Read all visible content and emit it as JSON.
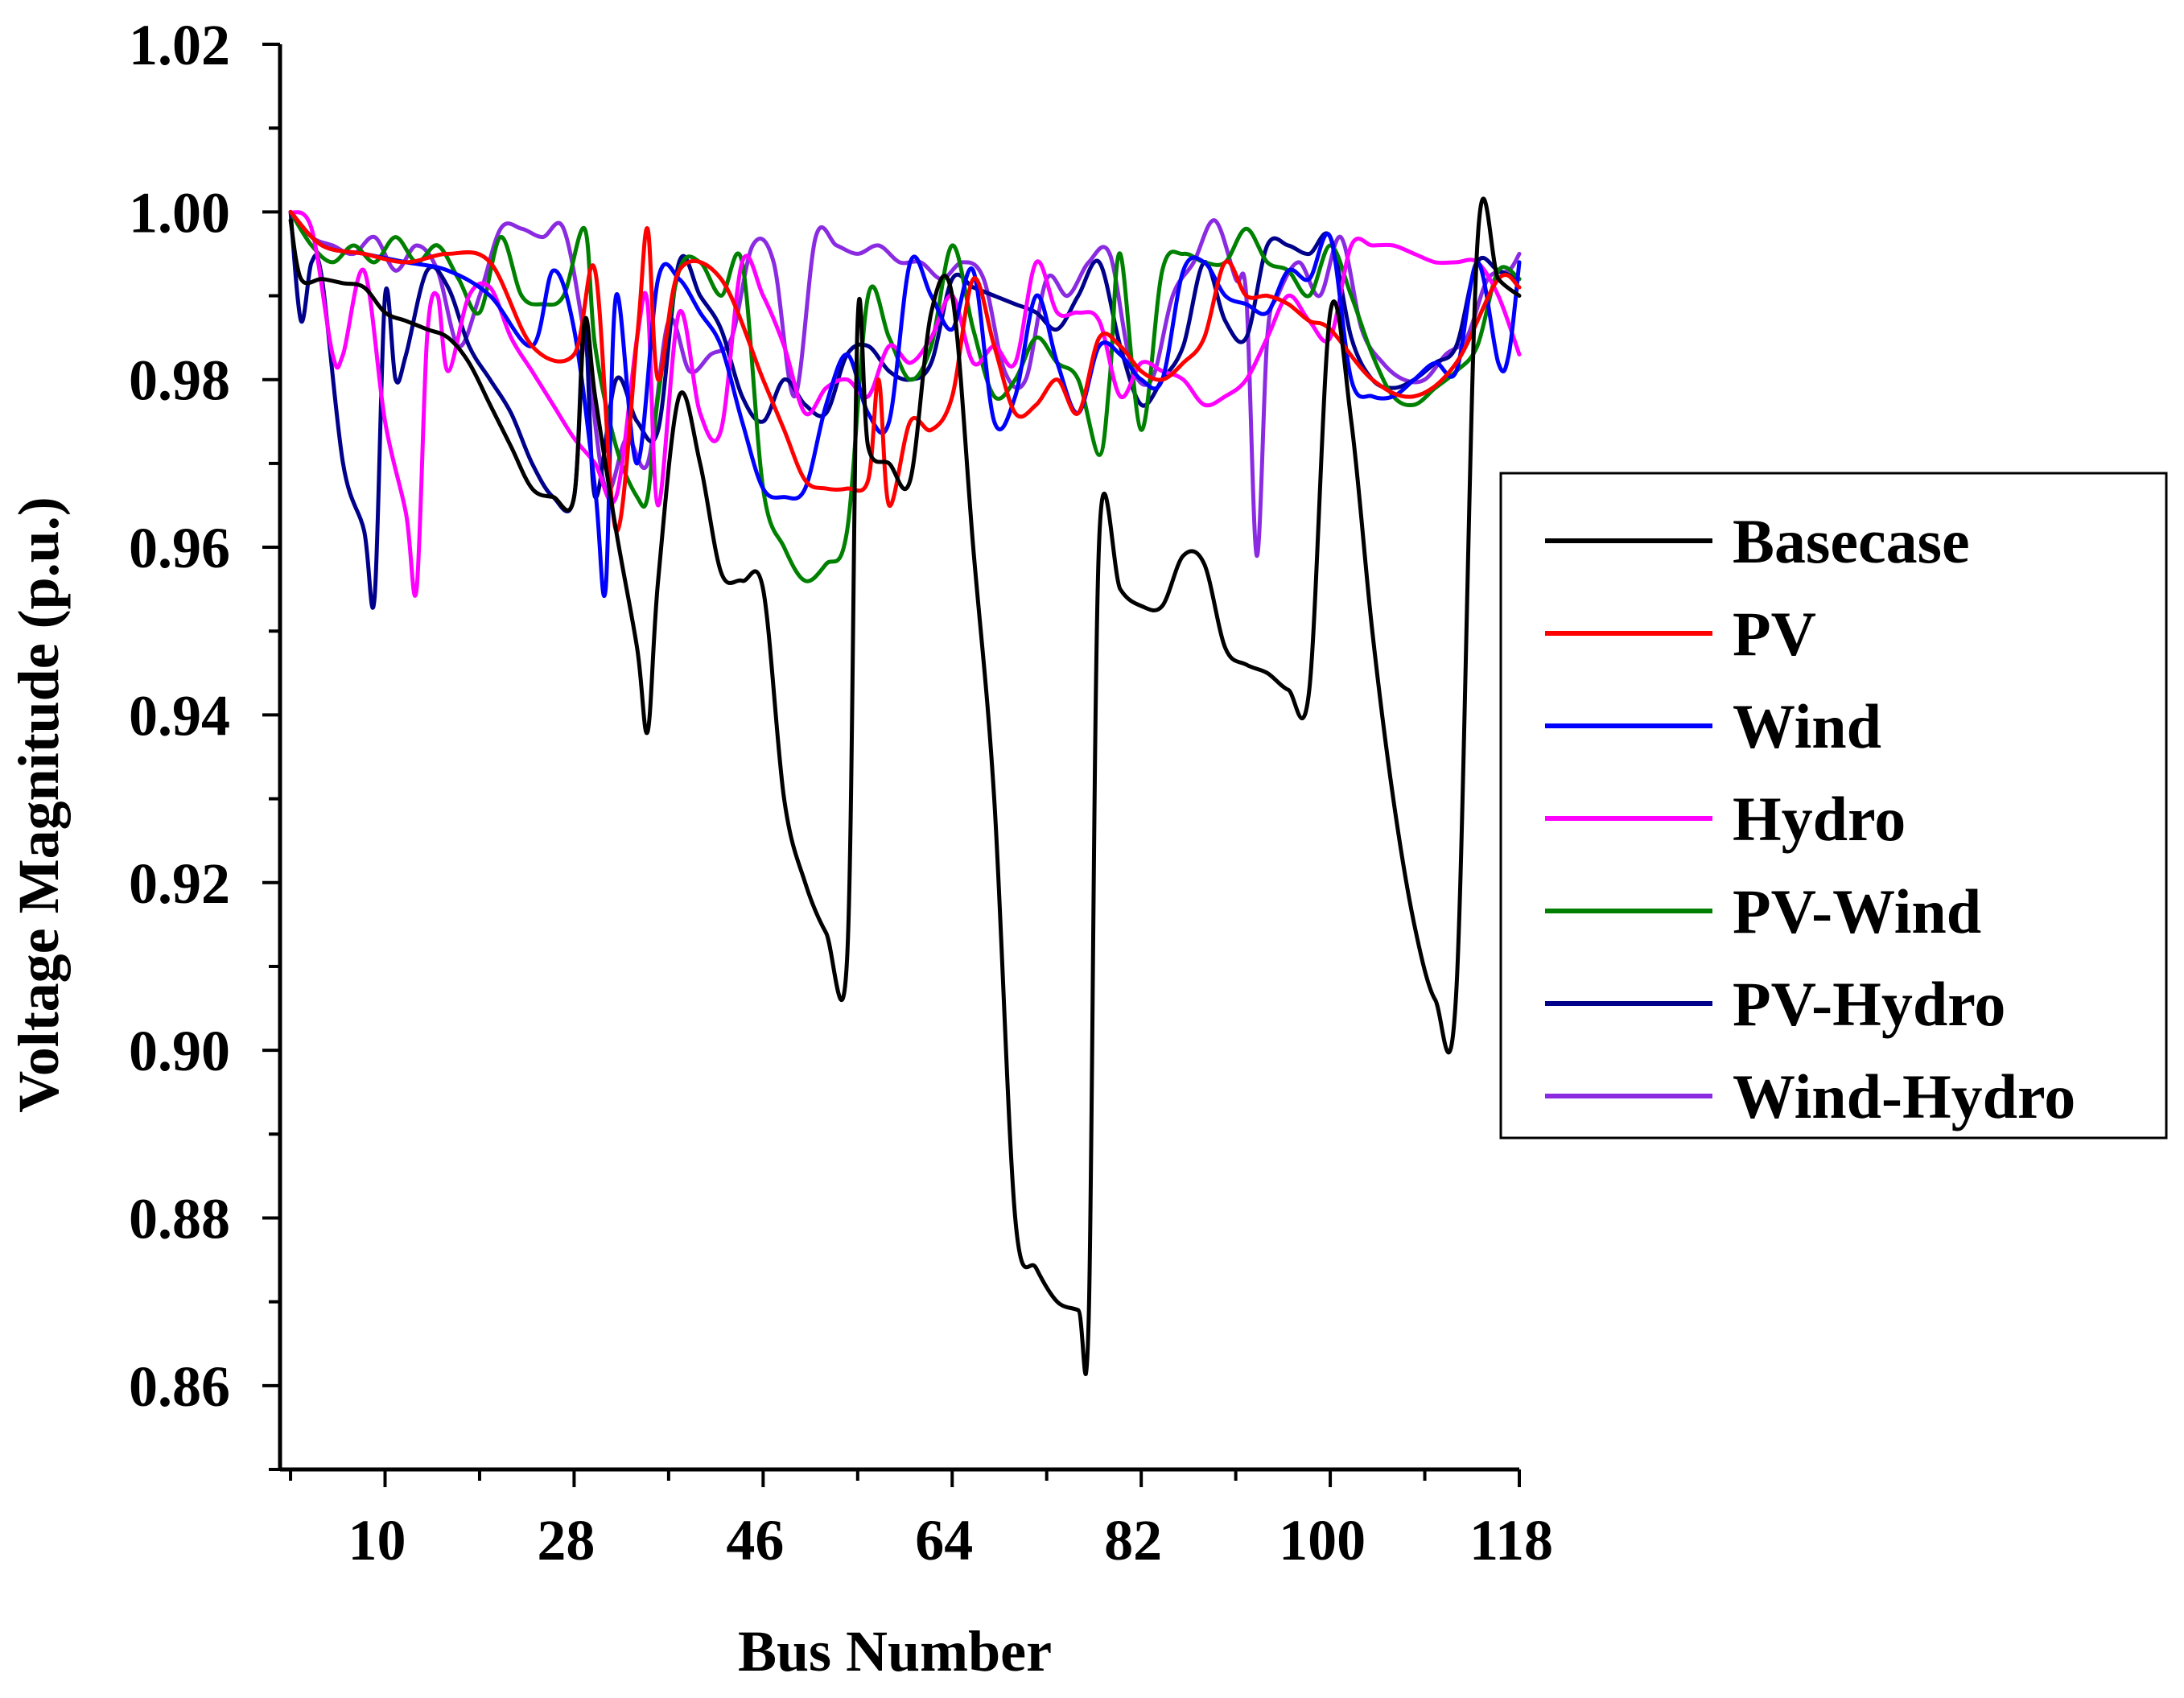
{
  "chart_data": {
    "type": "line",
    "title": "",
    "xlabel": "Bus Number",
    "ylabel": "Voltage Magnitude (p.u.)",
    "xlim": [
      0,
      118
    ],
    "ylim": [
      0.85,
      1.02
    ],
    "xticks": [
      10,
      28,
      46,
      64,
      82,
      100,
      118
    ],
    "xtick_labels": [
      "10",
      "28",
      "46",
      "64",
      "82",
      "100",
      "118"
    ],
    "yticks": [
      0.86,
      0.88,
      0.9,
      0.92,
      0.94,
      0.96,
      0.98,
      1.0,
      1.02
    ],
    "ytick_labels": [
      "0.86",
      "0.88",
      "0.90",
      "0.92",
      "0.94",
      "0.96",
      "0.98",
      "1.00",
      "1.02"
    ],
    "legend_position": "right",
    "series": [
      {
        "name": "Basecase",
        "color": "#000000",
        "x": [
          1,
          2,
          4,
          6,
          8,
          10,
          12,
          14,
          16,
          18,
          20,
          22,
          24,
          26,
          28,
          29,
          30,
          32,
          34,
          35,
          36,
          38,
          40,
          42,
          44,
          46,
          48,
          50,
          52,
          54,
          55,
          56,
          58,
          60,
          62,
          64,
          66,
          68,
          70,
          72,
          74,
          76,
          77,
          78,
          80,
          82,
          84,
          86,
          88,
          90,
          92,
          94,
          96,
          98,
          100,
          102,
          104,
          106,
          108,
          110,
          112,
          114,
          116,
          118
        ],
        "y": [
          0.999,
          0.992,
          0.992,
          0.9915,
          0.991,
          0.988,
          0.987,
          0.986,
          0.985,
          0.982,
          0.977,
          0.972,
          0.967,
          0.966,
          0.966,
          0.987,
          0.978,
          0.962,
          0.948,
          0.938,
          0.956,
          0.978,
          0.97,
          0.957,
          0.956,
          0.955,
          0.93,
          0.92,
          0.914,
          0.911,
          0.987,
          0.972,
          0.97,
          0.968,
          0.988,
          0.99,
          0.96,
          0.93,
          0.88,
          0.874,
          0.87,
          0.869,
          0.868,
          0.961,
          0.955,
          0.953,
          0.953,
          0.959,
          0.958,
          0.948,
          0.946,
          0.945,
          0.943,
          0.943,
          0.988,
          0.975,
          0.95,
          0.93,
          0.915,
          0.906,
          0.907,
          0.996,
          0.992,
          0.99
        ]
      },
      {
        "name": "PV",
        "color": "#ff0000",
        "x": [
          1,
          4,
          8,
          12,
          16,
          20,
          24,
          28,
          30,
          32,
          34,
          35,
          36,
          38,
          42,
          46,
          48,
          50,
          52,
          54,
          56,
          57,
          58,
          60,
          62,
          64,
          66,
          68,
          70,
          72,
          74,
          76,
          78,
          80,
          82,
          84,
          86,
          88,
          90,
          92,
          94,
          96,
          98,
          100,
          104,
          108,
          112,
          116,
          118
        ],
        "y": [
          1.0,
          0.996,
          0.995,
          0.994,
          0.995,
          0.994,
          0.984,
          0.983,
          0.993,
          0.962,
          0.985,
          0.998,
          0.98,
          0.993,
          0.992,
          0.98,
          0.974,
          0.968,
          0.967,
          0.967,
          0.968,
          0.98,
          0.965,
          0.975,
          0.974,
          0.978,
          0.992,
          0.984,
          0.976,
          0.977,
          0.98,
          0.976,
          0.985,
          0.984,
          0.981,
          0.98,
          0.982,
          0.985,
          0.994,
          0.99,
          0.99,
          0.989,
          0.987,
          0.986,
          0.98,
          0.978,
          0.982,
          0.992,
          0.991
        ]
      },
      {
        "name": "Wind",
        "color": "#0000ff",
        "x": [
          1,
          4,
          8,
          12,
          16,
          20,
          24,
          26,
          28,
          30,
          31,
          32,
          34,
          36,
          38,
          40,
          42,
          44,
          46,
          48,
          50,
          52,
          54,
          56,
          58,
          60,
          62,
          64,
          66,
          68,
          70,
          72,
          74,
          76,
          78,
          80,
          82,
          84,
          86,
          88,
          90,
          92,
          94,
          96,
          98,
          100,
          102,
          104,
          106,
          108,
          110,
          112,
          114,
          116,
          117,
          118
        ],
        "y": [
          1.0,
          0.996,
          0.995,
          0.994,
          0.993,
          0.99,
          0.984,
          0.993,
          0.986,
          0.967,
          0.955,
          0.99,
          0.97,
          0.992,
          0.992,
          0.988,
          0.984,
          0.975,
          0.967,
          0.966,
          0.967,
          0.977,
          0.983,
          0.976,
          0.975,
          0.994,
          0.99,
          0.986,
          0.993,
          0.975,
          0.978,
          0.99,
          0.982,
          0.976,
          0.984,
          0.983,
          0.98,
          0.98,
          0.993,
          0.994,
          0.99,
          0.989,
          0.988,
          0.993,
          0.992,
          0.997,
          0.98,
          0.978,
          0.978,
          0.98,
          0.982,
          0.981,
          0.994,
          0.982,
          0.983,
          0.994
        ]
      },
      {
        "name": "Hydro",
        "color": "#ff00ff",
        "x": [
          1,
          3,
          5,
          6,
          8,
          10,
          12,
          13,
          14,
          15,
          16,
          18,
          20,
          22,
          24,
          26,
          28,
          30,
          32,
          34,
          35,
          36,
          38,
          40,
          42,
          44,
          46,
          48,
          50,
          52,
          54,
          56,
          58,
          60,
          62,
          64,
          66,
          68,
          70,
          72,
          74,
          76,
          78,
          80,
          82,
          84,
          86,
          88,
          90,
          92,
          94,
          96,
          98,
          100,
          102,
          104,
          106,
          108,
          110,
          112,
          114,
          116,
          118
        ],
        "y": [
          1.0,
          0.998,
          0.983,
          0.983,
          0.993,
          0.975,
          0.964,
          0.955,
          0.985,
          0.99,
          0.981,
          0.99,
          0.991,
          0.985,
          0.981,
          0.977,
          0.973,
          0.97,
          0.966,
          0.985,
          0.989,
          0.965,
          0.988,
          0.976,
          0.974,
          0.994,
          0.99,
          0.984,
          0.976,
          0.979,
          0.98,
          0.978,
          0.984,
          0.982,
          0.985,
          0.99,
          0.982,
          0.984,
          0.982,
          0.994,
          0.988,
          0.988,
          0.987,
          0.978,
          0.982,
          0.981,
          0.98,
          0.977,
          0.978,
          0.98,
          0.985,
          0.99,
          0.987,
          0.985,
          0.996,
          0.996,
          0.996,
          0.995,
          0.994,
          0.994,
          0.994,
          0.99,
          0.983
        ]
      },
      {
        "name": "PV-Wind",
        "color": "#008000",
        "x": [
          1,
          3,
          5,
          7,
          9,
          11,
          13,
          15,
          17,
          19,
          21,
          23,
          25,
          27,
          29,
          30,
          32,
          34,
          35,
          36,
          38,
          40,
          42,
          44,
          46,
          48,
          50,
          52,
          54,
          56,
          58,
          60,
          62,
          64,
          66,
          68,
          70,
          72,
          74,
          76,
          78,
          79,
          80,
          82,
          84,
          86,
          88,
          90,
          92,
          94,
          96,
          98,
          100,
          102,
          104,
          106,
          108,
          110,
          112,
          114,
          116,
          118
        ],
        "y": [
          1.0,
          0.996,
          0.994,
          0.996,
          0.994,
          0.997,
          0.994,
          0.996,
          0.992,
          0.988,
          0.997,
          0.99,
          0.989,
          0.99,
          0.998,
          0.984,
          0.972,
          0.966,
          0.966,
          0.978,
          0.993,
          0.994,
          0.99,
          0.994,
          0.967,
          0.96,
          0.956,
          0.958,
          0.962,
          0.99,
          0.985,
          0.98,
          0.984,
          0.996,
          0.986,
          0.978,
          0.98,
          0.985,
          0.982,
          0.98,
          0.971,
          0.98,
          0.995,
          0.974,
          0.993,
          0.995,
          0.994,
          0.994,
          0.998,
          0.994,
          0.993,
          0.99,
          0.996,
          0.99,
          0.983,
          0.978,
          0.977,
          0.979,
          0.981,
          0.984,
          0.993,
          0.992
        ]
      },
      {
        "name": "PV-Hydro",
        "color": "#00008b",
        "x": [
          1,
          2,
          3,
          4,
          6,
          8,
          9,
          10,
          11,
          12,
          14,
          16,
          18,
          20,
          22,
          24,
          26,
          28,
          29,
          30,
          32,
          34,
          36,
          38,
          40,
          42,
          44,
          46,
          48,
          50,
          52,
          54,
          56,
          58,
          60,
          62,
          64,
          66,
          68,
          70,
          72,
          74,
          76,
          78,
          80,
          82,
          84,
          86,
          88,
          90,
          92,
          94,
          96,
          98,
          100,
          102,
          104,
          106,
          108,
          110,
          112,
          114,
          116,
          118
        ],
        "y": [
          1.0,
          0.987,
          0.994,
          0.992,
          0.97,
          0.962,
          0.954,
          0.99,
          0.98,
          0.983,
          0.993,
          0.991,
          0.984,
          0.98,
          0.976,
          0.97,
          0.966,
          0.966,
          0.987,
          0.966,
          0.98,
          0.975,
          0.974,
          0.994,
          0.99,
          0.986,
          0.978,
          0.975,
          0.98,
          0.977,
          0.976,
          0.983,
          0.984,
          0.981,
          0.98,
          0.982,
          0.992,
          0.991,
          0.99,
          0.989,
          0.988,
          0.986,
          0.99,
          0.994,
          0.984,
          0.977,
          0.98,
          0.984,
          0.994,
          0.987,
          0.985,
          0.996,
          0.996,
          0.995,
          0.997,
          0.985,
          0.98,
          0.979,
          0.98,
          0.982,
          0.984,
          0.994,
          0.993,
          0.992
        ]
      },
      {
        "name": "Wind-Hydro",
        "color": "#8a2be2",
        "x": [
          1,
          3,
          5,
          7,
          9,
          11,
          13,
          15,
          17,
          19,
          21,
          23,
          25,
          27,
          29,
          31,
          33,
          35,
          37,
          39,
          41,
          43,
          45,
          47,
          49,
          51,
          53,
          55,
          57,
          59,
          61,
          63,
          65,
          67,
          69,
          71,
          73,
          75,
          77,
          79,
          81,
          83,
          85,
          87,
          89,
          91,
          92,
          93,
          94,
          95,
          97,
          99,
          101,
          103,
          105,
          107,
          109,
          111,
          113,
          115,
          117,
          118
        ],
        "y": [
          1.0,
          0.997,
          0.996,
          0.995,
          0.997,
          0.993,
          0.996,
          0.993,
          0.984,
          0.99,
          0.998,
          0.998,
          0.997,
          0.998,
          0.985,
          0.967,
          0.973,
          0.97,
          0.987,
          0.981,
          0.983,
          0.985,
          0.996,
          0.994,
          0.978,
          0.997,
          0.996,
          0.995,
          0.996,
          0.994,
          0.994,
          0.992,
          0.994,
          0.992,
          0.981,
          0.98,
          0.992,
          0.99,
          0.994,
          0.995,
          0.982,
          0.98,
          0.99,
          0.994,
          0.999,
          0.992,
          0.99,
          0.959,
          0.985,
          0.99,
          0.994,
          0.99,
          0.997,
          0.986,
          0.982,
          0.98,
          0.98,
          0.983,
          0.985,
          0.992,
          0.993,
          0.995
        ]
      }
    ]
  }
}
